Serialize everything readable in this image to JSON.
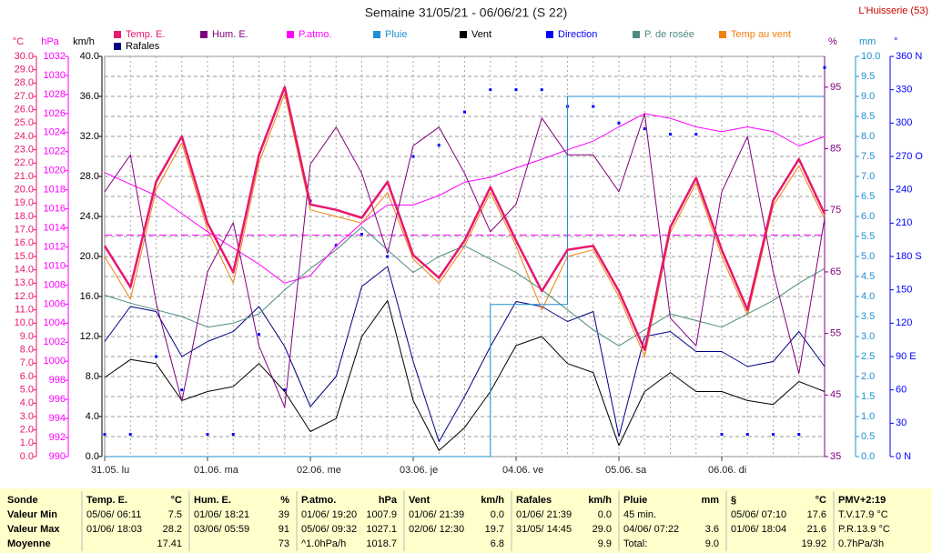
{
  "chart_data": {
    "type": "line",
    "title": "Semaine 31/05/21 - 06/06/21 (S 22)",
    "station": "L'Huisserie (53)",
    "xlim": [
      0,
      168
    ],
    "xticks": [
      {
        "value": 0,
        "label": "31.05. lu"
      },
      {
        "value": 24,
        "label": "01.06. ma"
      },
      {
        "value": 48,
        "label": "02.06. me"
      },
      {
        "value": 72,
        "label": "03.06. je"
      },
      {
        "value": 96,
        "label": "04.06. ve"
      },
      {
        "value": 120,
        "label": "05.06. sa"
      },
      {
        "value": 144,
        "label": "06.06. di"
      }
    ],
    "xgrid": [
      6,
      12,
      18,
      24,
      30,
      36,
      42,
      48,
      54,
      60,
      66,
      72,
      78,
      84,
      90,
      96,
      102,
      108,
      114,
      120,
      126,
      132,
      138,
      144,
      150,
      156,
      162
    ],
    "axes": [
      {
        "id": "temp",
        "unit": "°C",
        "color": "#e8176f",
        "lim": [
          0,
          30
        ],
        "ticks": [
          {
            "value": 0,
            "label": "0.0"
          },
          {
            "value": 1,
            "label": "1.0"
          },
          {
            "value": 2,
            "label": "2.0"
          },
          {
            "value": 3,
            "label": "3.0"
          },
          {
            "value": 4,
            "label": "4.0"
          },
          {
            "value": 5,
            "label": "5.0"
          },
          {
            "value": 6,
            "label": "6.0"
          },
          {
            "value": 7,
            "label": "7.0"
          },
          {
            "value": 8,
            "label": "8.0"
          },
          {
            "value": 9,
            "label": "9.0"
          },
          {
            "value": 10,
            "label": "10.0"
          },
          {
            "value": 11,
            "label": "11.0"
          },
          {
            "value": 12,
            "label": "12.0"
          },
          {
            "value": 13,
            "label": "13.0"
          },
          {
            "value": 14,
            "label": "14.0"
          },
          {
            "value": 15,
            "label": "15.0"
          },
          {
            "value": 16,
            "label": "16.0"
          },
          {
            "value": 17,
            "label": "17.0"
          },
          {
            "value": 18,
            "label": "18.0"
          },
          {
            "value": 19,
            "label": "19.0"
          },
          {
            "value": 20,
            "label": "20.0"
          },
          {
            "value": 21,
            "label": "21.0"
          },
          {
            "value": 22,
            "label": "22.0"
          },
          {
            "value": 23,
            "label": "23.0"
          },
          {
            "value": 24,
            "label": "24.0"
          },
          {
            "value": 25,
            "label": "25.0"
          },
          {
            "value": 26,
            "label": "26.0"
          },
          {
            "value": 27,
            "label": "27.0"
          },
          {
            "value": 28,
            "label": "28.0"
          },
          {
            "value": 29,
            "label": "29.0"
          },
          {
            "value": 30,
            "label": "30.0"
          }
        ]
      },
      {
        "id": "hpa",
        "unit": "hPa",
        "color": "#ff00ff",
        "lim": [
          990,
          1032
        ],
        "ticks": [
          990,
          992,
          994,
          996,
          998,
          1000,
          1002,
          1004,
          1006,
          1008,
          1010,
          1012,
          1014,
          1016,
          1018,
          1020,
          1022,
          1024,
          1026,
          1028,
          1030,
          1032
        ]
      },
      {
        "id": "kmh",
        "unit": "km/h",
        "color": "#000000",
        "lim": [
          0,
          40
        ],
        "ticks": [
          {
            "value": 0,
            "label": "0.0"
          },
          {
            "value": 4,
            "label": "4.0"
          },
          {
            "value": 8,
            "label": "8.0"
          },
          {
            "value": 12,
            "label": "12.0"
          },
          {
            "value": 16,
            "label": "16.0"
          },
          {
            "value": 20,
            "label": "20.0"
          },
          {
            "value": 24,
            "label": "24.0"
          },
          {
            "value": 28,
            "label": "28.0"
          },
          {
            "value": 32,
            "label": "32.0"
          },
          {
            "value": 36,
            "label": "36.0"
          },
          {
            "value": 40,
            "label": "40.0"
          }
        ],
        "minor_ticks": [
          2,
          6,
          10,
          14,
          18,
          22,
          26,
          30,
          34,
          38
        ]
      },
      {
        "id": "pct",
        "unit": "%",
        "color": "#800080",
        "lim": [
          35,
          100
        ],
        "ticks": [
          35,
          45,
          55,
          65,
          75,
          85,
          95
        ]
      },
      {
        "id": "mm",
        "unit": "mm",
        "color": "#1e8fd0",
        "lim": [
          0,
          10
        ],
        "ticks": [
          {
            "value": 0,
            "label": "0.0"
          },
          {
            "value": 0.5,
            "label": "0.5"
          },
          {
            "value": 1,
            "label": "1.0"
          },
          {
            "value": 1.5,
            "label": "1.5"
          },
          {
            "value": 2,
            "label": "2.0"
          },
          {
            "value": 2.5,
            "label": "2.5"
          },
          {
            "value": 3,
            "label": "3.0"
          },
          {
            "value": 3.5,
            "label": "3.5"
          },
          {
            "value": 4,
            "label": "4.0"
          },
          {
            "value": 4.5,
            "label": "4.5"
          },
          {
            "value": 5,
            "label": "5.0"
          },
          {
            "value": 5.5,
            "label": "5.5"
          },
          {
            "value": 6,
            "label": "6.0"
          },
          {
            "value": 6.5,
            "label": "6.5"
          },
          {
            "value": 7,
            "label": "7.0"
          },
          {
            "value": 7.5,
            "label": "7.5"
          },
          {
            "value": 8,
            "label": "8.0"
          },
          {
            "value": 8.5,
            "label": "8.5"
          },
          {
            "value": 9,
            "label": "9.0"
          },
          {
            "value": 9.5,
            "label": "9.5"
          },
          {
            "value": 10,
            "label": "10.0"
          }
        ]
      },
      {
        "id": "deg",
        "unit": "°",
        "color": "#0000ff",
        "lim": [
          0,
          360
        ],
        "ticks": [
          {
            "value": 0,
            "label": "0 N"
          },
          30,
          60,
          {
            "value": 90,
            "label": "90 E"
          },
          120,
          150,
          {
            "value": 180,
            "label": "180 S"
          },
          210,
          240,
          {
            "value": 270,
            "label": "270 O"
          },
          300,
          330,
          {
            "value": 360,
            "label": "360 N"
          }
        ]
      }
    ],
    "pressure_reference": 1013.25,
    "x": [
      0,
      6,
      12,
      18,
      24,
      30,
      36,
      42,
      48,
      54,
      60,
      66,
      72,
      78,
      84,
      90,
      96,
      102,
      108,
      114,
      120,
      126,
      132,
      138,
      144,
      150,
      156,
      162,
      168
    ],
    "series": [
      {
        "name": "Temp. E.",
        "color": "#e8176f",
        "axis": "temp",
        "style": "line",
        "width": 2.5,
        "values": [
          15.8,
          12.7,
          20.6,
          24.0,
          17.5,
          13.8,
          22.6,
          27.7,
          18.9,
          18.5,
          17.9,
          20.6,
          15.1,
          13.4,
          16.2,
          20.2,
          16.2,
          12.4,
          15.5,
          15.8,
          12.4,
          8.0,
          17.2,
          20.9,
          15.5,
          11.0,
          19.2,
          22.3,
          18.2
        ]
      },
      {
        "name": "Hum. E.",
        "color": "#800080",
        "axis": "pct",
        "style": "line",
        "width": 1,
        "values": [
          78,
          84,
          60,
          44,
          65,
          73,
          53,
          43,
          82.5,
          88.5,
          81,
          68,
          85.5,
          88.5,
          81,
          71.5,
          76,
          90,
          84,
          84,
          78,
          90.7,
          57.5,
          53,
          78,
          87,
          65,
          48.5,
          73.7
        ]
      },
      {
        "name": "P.atmo.",
        "color": "#ff00ff",
        "axis": "hpa",
        "style": "line",
        "width": 1,
        "values": [
          1019.8,
          1018.6,
          1017.4,
          1015.5,
          1013.6,
          1011.9,
          1010.2,
          1008.2,
          1009.0,
          1012.1,
          1014.5,
          1016.4,
          1016.4,
          1017.4,
          1018.8,
          1019.3,
          1020.3,
          1021.2,
          1022.2,
          1023.1,
          1024.6,
          1026.0,
          1025.5,
          1024.6,
          1024.1,
          1024.6,
          1024.1,
          1022.6,
          1023.6
        ]
      },
      {
        "name": "Pluie",
        "color": "#1e8fd0",
        "axis": "mm",
        "style": "step",
        "width": 1,
        "values": [
          0,
          0,
          0,
          0,
          0,
          0,
          0,
          0,
          0,
          0,
          0,
          0,
          0,
          0,
          0,
          3.8,
          3.8,
          3.8,
          9.0,
          9.0,
          9.0,
          9.0,
          9.0,
          9.0,
          9.0,
          9.0,
          9.0,
          9.0,
          9.0
        ]
      },
      {
        "name": "Vent",
        "color": "#000000",
        "axis": "kmh",
        "style": "line",
        "width": 1,
        "values": [
          7.9,
          9.7,
          9.3,
          5.6,
          6.5,
          7.0,
          9.3,
          6.5,
          2.5,
          3.8,
          12.0,
          15.6,
          5.6,
          0.6,
          2.9,
          6.5,
          11.1,
          12.0,
          9.3,
          8.4,
          1.1,
          6.5,
          8.4,
          6.5,
          6.5,
          5.6,
          5.2,
          7.5,
          6.5
        ]
      },
      {
        "name": "Direction",
        "color": "#0000ff",
        "axis": "deg",
        "style": "dots",
        "width": 1,
        "values": [
          20,
          20,
          90,
          60,
          20,
          20,
          110,
          60,
          230,
          190,
          200,
          180,
          270,
          280,
          310,
          330,
          330,
          330,
          315,
          315,
          300,
          295,
          290,
          290,
          20,
          20,
          20,
          20,
          350
        ]
      },
      {
        "name": "P. de rosée",
        "color": "#4e8a80",
        "axis": "temp",
        "style": "line",
        "width": 1,
        "values": [
          12.1,
          11.5,
          11.0,
          10.5,
          9.7,
          10.0,
          10.7,
          12.5,
          14.1,
          15.5,
          17.2,
          15.5,
          13.8,
          15.0,
          15.8,
          14.8,
          13.8,
          12.5,
          11.0,
          9.5,
          8.3,
          9.5,
          10.7,
          10.2,
          9.7,
          10.7,
          11.7,
          13.0,
          14.1
        ]
      },
      {
        "name": "Temp au vent",
        "color": "#f08010",
        "axis": "temp",
        "style": "line",
        "width": 1,
        "values": [
          15.0,
          11.8,
          20.0,
          23.5,
          17.0,
          13.0,
          22.0,
          27.2,
          18.5,
          18.0,
          17.5,
          19.8,
          14.8,
          13.0,
          15.8,
          19.8,
          15.8,
          11.0,
          15.0,
          15.5,
          12.0,
          7.5,
          16.8,
          20.5,
          15.0,
          10.6,
          18.8,
          21.8,
          17.8
        ]
      },
      {
        "name": "Rafales",
        "color": "#000080",
        "axis": "kmh",
        "style": "line",
        "width": 1,
        "values": [
          11.5,
          15.0,
          14.5,
          10.0,
          11.5,
          12.5,
          15.0,
          11.0,
          5.0,
          8.0,
          17.0,
          19.0,
          9.5,
          1.5,
          6.0,
          11.0,
          15.5,
          15.0,
          13.5,
          14.5,
          2.0,
          12.0,
          12.5,
          10.5,
          10.5,
          9.0,
          9.5,
          12.5,
          9.0
        ]
      }
    ]
  },
  "stats": {
    "labels": [
      "Sonde",
      "Valeur Min",
      "Valeur Max",
      "Moyenne"
    ],
    "columns": [
      {
        "title": "Temp. E.",
        "unit": "°C",
        "rows": [
          {
            "date": "05/06/ 06:11",
            "value": "7.5"
          },
          {
            "date": "01/06/ 18:03",
            "value": "28.2"
          },
          {
            "value": "17.41"
          }
        ]
      },
      {
        "title": "Hum. E.",
        "unit": "%",
        "rows": [
          {
            "date": "01/06/ 18:21",
            "value": "39"
          },
          {
            "date": "03/06/ 05:59",
            "value": "91"
          },
          {
            "value": "73"
          }
        ]
      },
      {
        "title": "P.atmo.",
        "unit": "hPa",
        "rows": [
          {
            "date": "01/06/ 19:20",
            "value": "1007.9"
          },
          {
            "date": "05/06/ 09:32",
            "value": "1027.1"
          },
          {
            "date": "^1.0hPa/h",
            "value": "1018.7"
          }
        ]
      },
      {
        "title": "Vent",
        "unit": "km/h",
        "rows": [
          {
            "date": "01/06/ 21:39",
            "value": "0.0"
          },
          {
            "date": "02/06/ 12:30",
            "value": "19.7"
          },
          {
            "value": "6.8"
          }
        ]
      },
      {
        "title": "Rafales",
        "unit": "km/h",
        "rows": [
          {
            "date": "01/06/ 21:39",
            "value": "0.0"
          },
          {
            "date": "31/05/ 14:45",
            "value": "29.0"
          },
          {
            "value": "9.9"
          }
        ]
      },
      {
        "title": "Pluie",
        "unit": "mm",
        "rows": [
          {
            "date": "45 min."
          },
          {
            "date": "04/06/ 07:22",
            "value": "3.6"
          },
          {
            "date": "Total:",
            "value": "9.0"
          }
        ]
      },
      {
        "title": "§",
        "unit": "°C",
        "rows": [
          {
            "date": "05/06/ 07:10",
            "value": "17.6"
          },
          {
            "date": "01/06/ 18:04",
            "value": "21.6"
          },
          {
            "value": "19.92"
          }
        ]
      },
      {
        "title": "PMV+2:19",
        "rows": [
          {
            "date": "T.V.17.9 °C"
          },
          {
            "date": "P.R.13.9 °C"
          },
          {
            "date": "0.7hPa/3h"
          }
        ]
      }
    ]
  }
}
